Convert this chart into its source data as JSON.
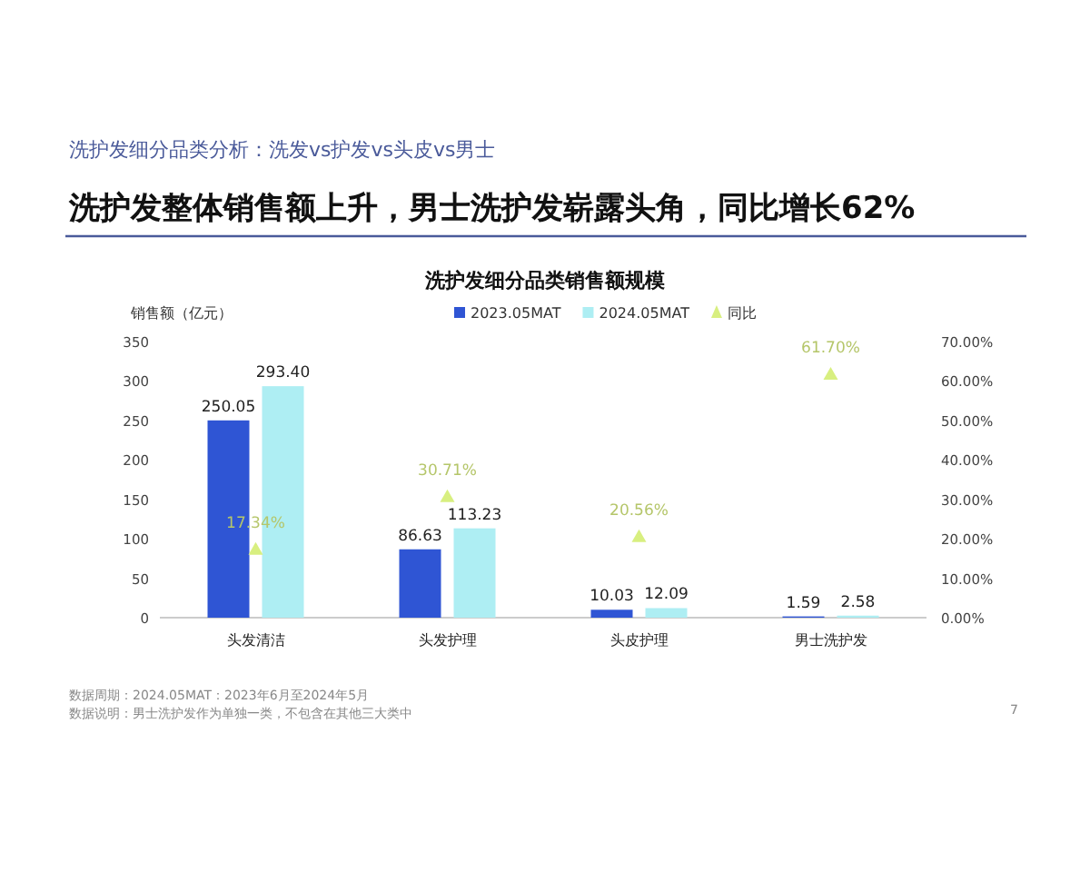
{
  "chart_data": {
    "type": "bar",
    "title": "洗护发细分品类销售额规模",
    "ylabel": "销售额（亿元）",
    "categories": [
      "头发清洁",
      "头发护理",
      "头皮护理",
      "男士洗护发"
    ],
    "series": [
      {
        "name": "2023.05MAT",
        "color": "#2f55d4",
        "values": [
          250.05,
          86.63,
          10.03,
          1.59
        ]
      },
      {
        "name": "2024.05MAT",
        "color": "#aeeef3",
        "values": [
          293.4,
          113.23,
          12.09,
          2.58
        ],
        "value_labels": [
          "293.40",
          "113.23",
          "12.09",
          "2.58"
        ]
      },
      {
        "name": "同比",
        "type": "scatter",
        "axis": "y2",
        "marker": "triangle",
        "color": "#d8ef80",
        "values": [
          17.34,
          30.71,
          20.56,
          61.7
        ],
        "value_labels": [
          "17.34%",
          "30.71%",
          "20.56%",
          "61.70%"
        ]
      }
    ],
    "ylim": [
      0,
      350
    ],
    "yticks": [
      0,
      50,
      100,
      150,
      200,
      250,
      300,
      350
    ],
    "y2lim": [
      0,
      70
    ],
    "y2ticks": [
      {
        "value": 0,
        "label": "0.00%"
      },
      {
        "value": 10,
        "label": "10.00%"
      },
      {
        "value": 20,
        "label": "20.00%"
      },
      {
        "value": 30,
        "label": "30.00%"
      },
      {
        "value": 40,
        "label": "40.00%"
      },
      {
        "value": 50,
        "label": "50.00%"
      },
      {
        "value": 60,
        "label": "60.00%"
      },
      {
        "value": 70,
        "label": "70.00%"
      }
    ],
    "data_labels": true,
    "legend": "top",
    "grid": false,
    "annotations": [
      "洗护发细分品类分析：洗发vs护发vs头皮vs男士",
      "洗护发整体销售额上升，男士洗护发崭露头角，同比增长62%",
      "数据周期：2024.05MAT：2023年6月至2024年5月",
      "数据说明：男士洗护发作为单独一类，不包含在其他三大类中",
      "7"
    ]
  }
}
